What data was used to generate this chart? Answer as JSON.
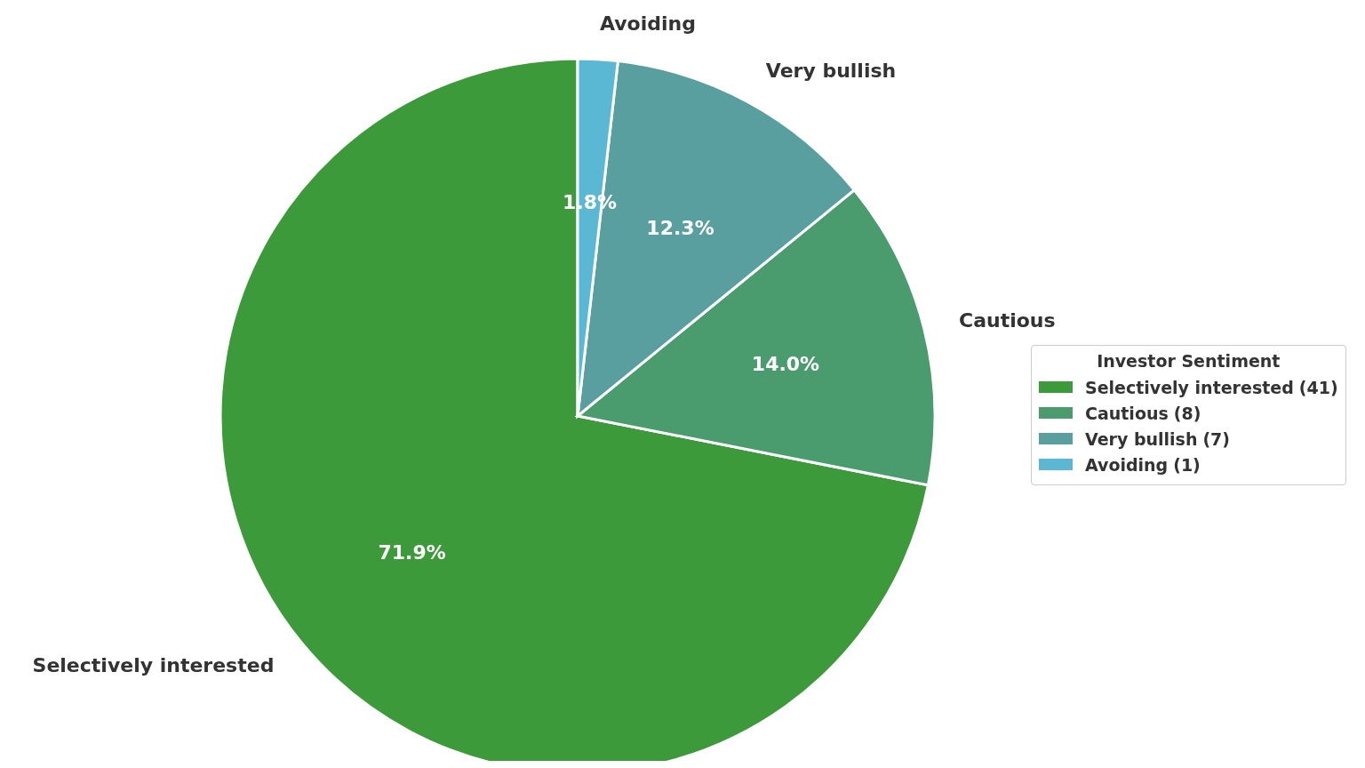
{
  "chart_data": {
    "type": "pie",
    "categories": [
      "Selectively interested",
      "Cautious",
      "Very bullish",
      "Avoiding"
    ],
    "values": [
      71.9,
      14.0,
      12.3,
      1.8
    ],
    "annotations": [
      "(41)",
      "(8)",
      "(7)",
      "(1)"
    ],
    "colors": [
      "#3d9a3b",
      "#4a9b6e",
      "#5a9fa0",
      "#5bb8d4"
    ],
    "value_labels": [
      "71.9%",
      "14.0%",
      "12.3%",
      "1.8%"
    ],
    "legend_title": "Investor Sentiment",
    "legend": "right"
  }
}
